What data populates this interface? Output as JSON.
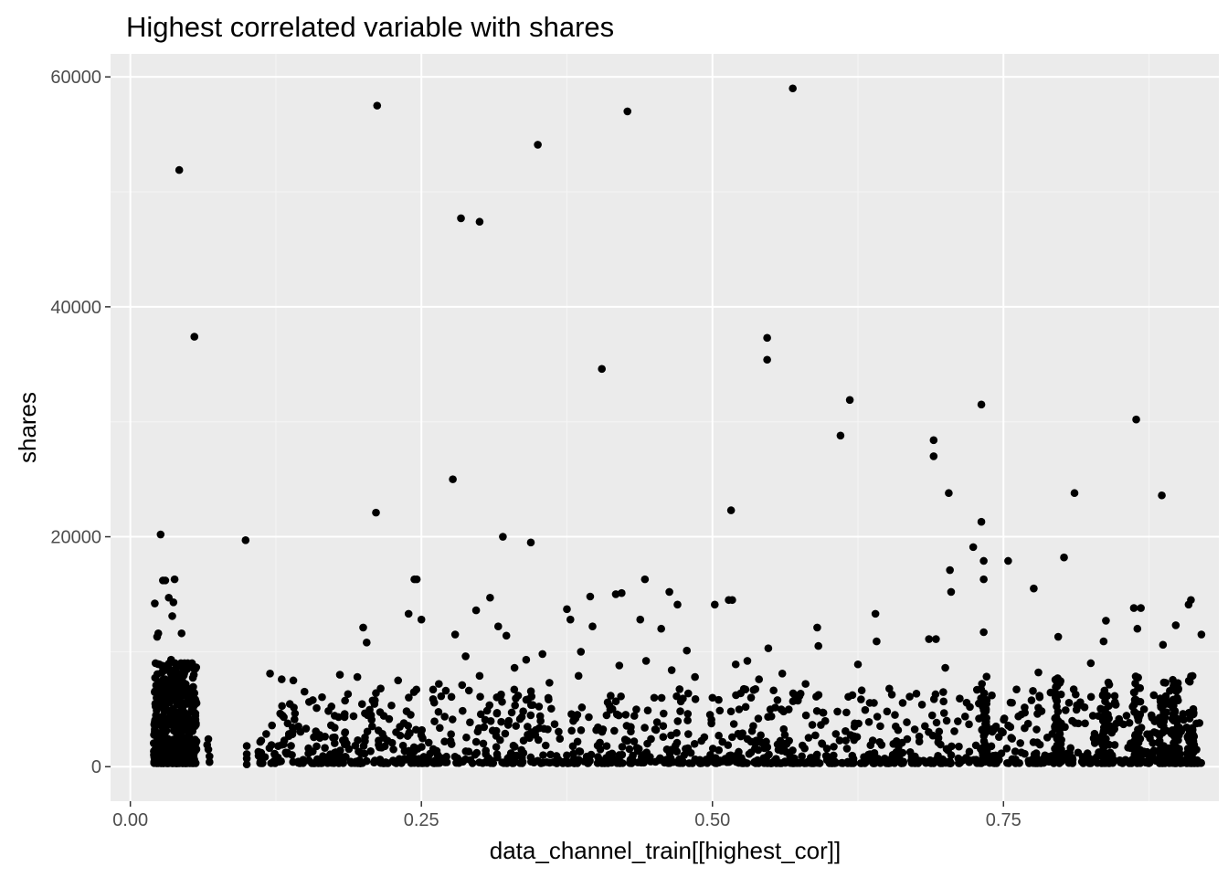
{
  "chart_data": {
    "type": "scatter",
    "title": "Highest correlated variable with shares",
    "xlabel": "data_channel_train[[highest_cor]]",
    "ylabel": "shares",
    "xlim": [
      -0.017,
      0.935
    ],
    "ylim": [
      -3000,
      62000
    ],
    "x_ticks": [
      0.0,
      0.25,
      0.5,
      0.75
    ],
    "x_tick_labels": [
      "0.00",
      "0.25",
      "0.50",
      "0.75"
    ],
    "y_ticks": [
      0,
      20000,
      40000,
      60000
    ],
    "y_tick_labels": [
      "0",
      "20000",
      "40000",
      "60000"
    ],
    "grid": true,
    "legend": "none",
    "colors": {
      "panel_background": "#ebebeb",
      "grid_major": "#ffffff",
      "grid_minor": "#f5f5f5",
      "point": "#000000",
      "tick_text": "#4d4d4d"
    },
    "points": [
      [
        0.021,
        14200
      ],
      [
        0.023,
        11300
      ],
      [
        0.024,
        11600
      ],
      [
        0.025,
        8900
      ],
      [
        0.026,
        20200
      ],
      [
        0.028,
        16200
      ],
      [
        0.03,
        16200
      ],
      [
        0.033,
        14700
      ],
      [
        0.036,
        13100
      ],
      [
        0.037,
        14300
      ],
      [
        0.038,
        16300
      ],
      [
        0.035,
        9300
      ],
      [
        0.044,
        11600
      ],
      [
        0.042,
        51900
      ],
      [
        0.055,
        37400
      ],
      [
        0.055,
        6400
      ],
      [
        0.041,
        7000
      ],
      [
        0.03,
        7600
      ],
      [
        0.027,
        8200
      ],
      [
        0.025,
        6200
      ],
      [
        0.099,
        19700
      ],
      [
        0.212,
        57500
      ],
      [
        0.211,
        22100
      ],
      [
        0.2,
        12100
      ],
      [
        0.203,
        10800
      ],
      [
        0.244,
        16300
      ],
      [
        0.246,
        16300
      ],
      [
        0.239,
        13300
      ],
      [
        0.25,
        12800
      ],
      [
        0.277,
        25000
      ],
      [
        0.284,
        47700
      ],
      [
        0.3,
        47400
      ],
      [
        0.288,
        9600
      ],
      [
        0.279,
        11500
      ],
      [
        0.32,
        20000
      ],
      [
        0.344,
        19500
      ],
      [
        0.35,
        54100
      ],
      [
        0.323,
        11400
      ],
      [
        0.316,
        12200
      ],
      [
        0.309,
        14700
      ],
      [
        0.297,
        13600
      ],
      [
        0.34,
        9300
      ],
      [
        0.354,
        9800
      ],
      [
        0.375,
        13700
      ],
      [
        0.378,
        12800
      ],
      [
        0.395,
        14800
      ],
      [
        0.387,
        10000
      ],
      [
        0.397,
        12200
      ],
      [
        0.405,
        34600
      ],
      [
        0.417,
        15000
      ],
      [
        0.422,
        15100
      ],
      [
        0.427,
        57000
      ],
      [
        0.438,
        12800
      ],
      [
        0.442,
        16300
      ],
      [
        0.443,
        9200
      ],
      [
        0.456,
        12000
      ],
      [
        0.463,
        15200
      ],
      [
        0.47,
        14100
      ],
      [
        0.478,
        10100
      ],
      [
        0.502,
        14100
      ],
      [
        0.514,
        14500
      ],
      [
        0.517,
        14500
      ],
      [
        0.516,
        22300
      ],
      [
        0.547,
        37300
      ],
      [
        0.547,
        35400
      ],
      [
        0.548,
        10300
      ],
      [
        0.569,
        59000
      ],
      [
        0.59,
        12100
      ],
      [
        0.591,
        10500
      ],
      [
        0.61,
        28800
      ],
      [
        0.618,
        31900
      ],
      [
        0.64,
        13300
      ],
      [
        0.641,
        10900
      ],
      [
        0.686,
        11100
      ],
      [
        0.69,
        28400
      ],
      [
        0.69,
        27000
      ],
      [
        0.692,
        11100
      ],
      [
        0.703,
        23800
      ],
      [
        0.704,
        17100
      ],
      [
        0.705,
        15200
      ],
      [
        0.724,
        19100
      ],
      [
        0.731,
        31500
      ],
      [
        0.731,
        21300
      ],
      [
        0.733,
        17900
      ],
      [
        0.733,
        16300
      ],
      [
        0.733,
        11700
      ],
      [
        0.754,
        17900
      ],
      [
        0.776,
        15500
      ],
      [
        0.797,
        11300
      ],
      [
        0.802,
        18200
      ],
      [
        0.811,
        23800
      ],
      [
        0.864,
        30200
      ],
      [
        0.862,
        13800
      ],
      [
        0.868,
        13800
      ],
      [
        0.865,
        12000
      ],
      [
        0.886,
        23600
      ],
      [
        0.898,
        12300
      ],
      [
        0.909,
        14100
      ],
      [
        0.911,
        14500
      ],
      [
        0.92,
        11500
      ],
      [
        0.887,
        10600
      ],
      [
        0.838,
        12700
      ],
      [
        0.836,
        10900
      ],
      [
        0.825,
        9000
      ],
      [
        0.78,
        8200
      ],
      [
        0.74,
        6200
      ],
      [
        0.7,
        8600
      ],
      [
        0.68,
        5400
      ],
      [
        0.65,
        4800
      ],
      [
        0.625,
        8900
      ],
      [
        0.58,
        7200
      ],
      [
        0.56,
        8100
      ],
      [
        0.54,
        7600
      ],
      [
        0.53,
        9200
      ],
      [
        0.52,
        8900
      ],
      [
        0.485,
        7800
      ],
      [
        0.465,
        8400
      ],
      [
        0.45,
        6000
      ],
      [
        0.42,
        8800
      ],
      [
        0.41,
        5600
      ],
      [
        0.385,
        7900
      ],
      [
        0.36,
        7300
      ],
      [
        0.33,
        8600
      ],
      [
        0.3,
        7900
      ],
      [
        0.285,
        7100
      ],
      [
        0.265,
        7200
      ],
      [
        0.23,
        7500
      ],
      [
        0.215,
        6800
      ],
      [
        0.195,
        7800
      ],
      [
        0.18,
        8000
      ],
      [
        0.16,
        5100
      ],
      [
        0.14,
        7500
      ],
      [
        0.13,
        7600
      ],
      [
        0.12,
        8100
      ],
      [
        0.11,
        1300
      ],
      [
        0.1,
        1800
      ],
      [
        0.1,
        200
      ],
      [
        0.1,
        700
      ],
      [
        0.1,
        1100
      ],
      [
        0.067,
        2400
      ],
      [
        0.067,
        1500
      ],
      [
        0.068,
        400
      ],
      [
        0.068,
        900
      ],
      [
        0.066,
        1900
      ]
    ]
  }
}
